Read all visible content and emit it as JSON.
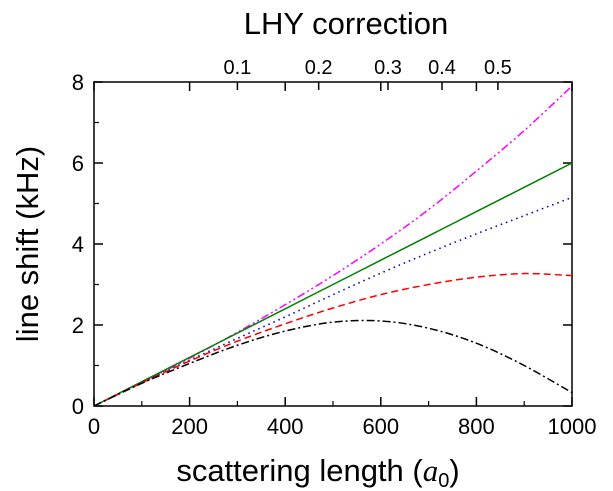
{
  "chart_data": {
    "type": "line",
    "title": "LHY correction",
    "xlabel": "scattering length (",
    "xlabel_symbol": "a",
    "xlabel_subscript": "0",
    "xlabel_close": ")",
    "ylabel": "line shift (kHz)",
    "xlim": [
      0,
      1000
    ],
    "ylim": [
      0,
      8
    ],
    "x_ticks": [
      "0",
      "200",
      "400",
      "600",
      "800",
      "1000"
    ],
    "y_ticks": [
      "0",
      "2",
      "4",
      "6",
      "8"
    ],
    "top_axis": {
      "label": "LHY correction",
      "ticks": [
        {
          "label": "0.1",
          "x": 300
        },
        {
          "label": "0.2",
          "x": 470
        },
        {
          "label": "0.3",
          "x": 615
        },
        {
          "label": "0.4",
          "x": 728
        },
        {
          "label": "0.5",
          "x": 845
        }
      ]
    },
    "grid": false,
    "legend": "none",
    "series": [
      {
        "color": "#ff00ff",
        "style": "dash-dot-dot",
        "x": [
          0,
          100,
          200,
          300,
          400,
          500,
          600,
          700,
          800,
          900,
          1000
        ],
        "y": [
          0,
          0.58,
          1.18,
          1.82,
          2.5,
          3.22,
          4.0,
          4.85,
          5.8,
          6.8,
          7.9
        ]
      },
      {
        "color": "#008000",
        "style": "solid",
        "x": [
          0,
          100,
          200,
          300,
          400,
          500,
          600,
          700,
          800,
          900,
          1000
        ],
        "y": [
          0,
          0.6,
          1.2,
          1.8,
          2.4,
          3.0,
          3.6,
          4.2,
          4.8,
          5.4,
          6.0
        ]
      },
      {
        "color": "#0000cc",
        "style": "dotted",
        "x": [
          0,
          100,
          200,
          300,
          400,
          500,
          600,
          700,
          800,
          900,
          1000
        ],
        "y": [
          0,
          0.58,
          1.13,
          1.67,
          2.2,
          2.75,
          3.28,
          3.78,
          4.25,
          4.7,
          5.15
        ]
      },
      {
        "color": "#ff0000",
        "style": "dashed",
        "x": [
          0,
          100,
          200,
          300,
          400,
          500,
          600,
          700,
          800,
          900,
          1000
        ],
        "y": [
          0,
          0.57,
          1.11,
          1.6,
          2.03,
          2.42,
          2.75,
          3.0,
          3.18,
          3.27,
          3.22
        ]
      },
      {
        "color": "#000000",
        "style": "dash-dot",
        "x": [
          0,
          100,
          200,
          300,
          400,
          500,
          600,
          700,
          800,
          900,
          1000
        ],
        "y": [
          0,
          0.56,
          1.05,
          1.5,
          1.85,
          2.07,
          2.1,
          1.92,
          1.55,
          1.0,
          0.33
        ]
      }
    ]
  }
}
